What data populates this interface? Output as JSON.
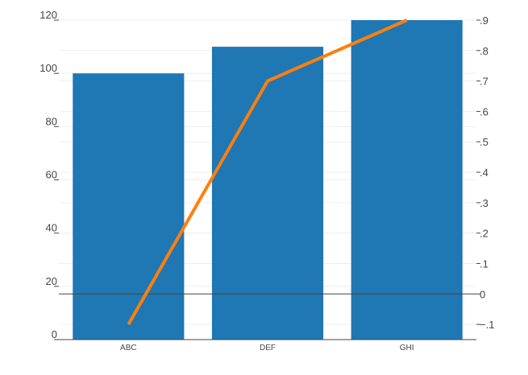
{
  "chart_data": {
    "type": "bar",
    "title": "",
    "xlabel": "",
    "ylabel": "",
    "y2label": "",
    "categories": [
      "ABC",
      "DEF",
      "GHI"
    ],
    "series": [
      {
        "type": "bar",
        "axis": "y",
        "values": [
          100,
          110,
          120
        ]
      },
      {
        "type": "line",
        "axis": "y2",
        "values": [
          -0.1,
          0.7,
          0.9
        ]
      }
    ],
    "ylim": [
      0,
      120
    ],
    "y2lim": [
      -0.15,
      0.9
    ],
    "yticks": [
      0,
      20,
      40,
      60,
      80,
      100,
      120
    ],
    "y2ticks": [
      -0.1,
      0,
      0.1,
      0.2,
      0.3,
      0.4,
      0.5,
      0.6,
      0.7,
      0.8,
      0.9
    ],
    "grid": true,
    "legend": "none",
    "colors": {
      "bar": "#1f77b4",
      "line": "#ff7f0e",
      "grid": "#eeeeee",
      "zeroline": "#444444",
      "axis": "#444444"
    }
  }
}
